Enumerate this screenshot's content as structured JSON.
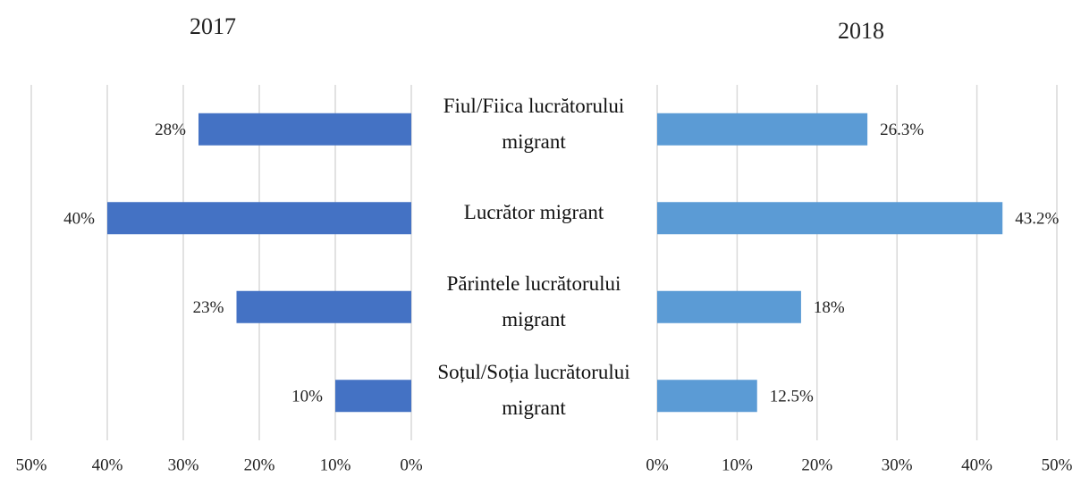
{
  "chart_data": [
    {
      "type": "bar",
      "orientation": "horizontal",
      "reversed": true,
      "title": "2017",
      "categories": [
        "Fiul/Fiica lucrătorului migrant",
        "Lucrător migrant",
        "Părintele lucrătorului migrant",
        "Soțul/Soția lucrătorului migrant"
      ],
      "values": [
        28,
        40,
        23,
        10
      ],
      "value_labels": [
        "28%",
        "40%",
        "23%",
        "10%"
      ],
      "color": "#4472c4",
      "xlim": [
        0,
        50
      ],
      "xticks": [
        {
          "value": 0,
          "label": "0%"
        },
        {
          "value": 10,
          "label": "10%"
        },
        {
          "value": 20,
          "label": "20%"
        },
        {
          "value": 30,
          "label": "30%"
        },
        {
          "value": 40,
          "label": "40%"
        },
        {
          "value": 50,
          "label": "50%"
        }
      ],
      "grid": true
    },
    {
      "type": "bar",
      "orientation": "horizontal",
      "reversed": false,
      "title": "2018",
      "values": [
        26.3,
        43.2,
        18,
        12.5
      ],
      "value_labels": [
        "26.3%",
        "43.2%",
        "18%",
        "12.5%"
      ],
      "color": "#5b9bd5",
      "xlim": [
        0,
        50
      ],
      "xticks": [
        {
          "value": 0,
          "label": "0%"
        },
        {
          "value": 10,
          "label": "10%"
        },
        {
          "value": 20,
          "label": "20%"
        },
        {
          "value": 30,
          "label": "30%"
        },
        {
          "value": 40,
          "label": "40%"
        },
        {
          "value": 50,
          "label": "50%"
        }
      ],
      "grid": true
    }
  ]
}
